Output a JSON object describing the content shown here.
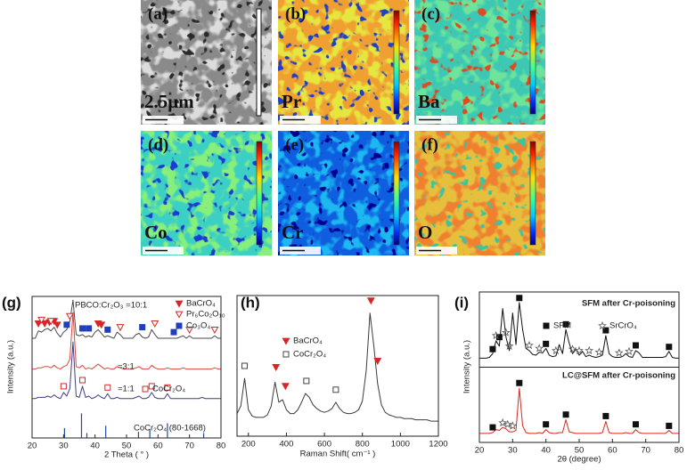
{
  "maps": [
    {
      "label": "(a)",
      "caption": "2.5μm"
    },
    {
      "label": "(b)",
      "caption": "Pr"
    },
    {
      "label": "(c)",
      "caption": "Ba"
    },
    {
      "label": "(d)",
      "caption": "Co"
    },
    {
      "label": "(e)",
      "caption": "Cr"
    },
    {
      "label": "(f)",
      "caption": "O"
    }
  ],
  "chart_data": [
    {
      "type": "line",
      "panel": "(g)",
      "xlabel": "2 Theta ( ° )",
      "ylabel": "Intensity (a.u.)",
      "xlim": [
        20,
        80
      ],
      "xticks": [
        20,
        30,
        40,
        50,
        60,
        70,
        80
      ],
      "ylim": [
        0,
        115
      ],
      "x": [
        20,
        21,
        22,
        23,
        24,
        25,
        26,
        27,
        28,
        29,
        30,
        31,
        32,
        33,
        34,
        35,
        36,
        37,
        38,
        39,
        40,
        41,
        42,
        43,
        44,
        45,
        46,
        47,
        48,
        49,
        50,
        51,
        52,
        53,
        54,
        55,
        56,
        57,
        58,
        59,
        60,
        61,
        62,
        63,
        64,
        65,
        66,
        67,
        68,
        69,
        70,
        71,
        72,
        73,
        74,
        75,
        76,
        77,
        78,
        79,
        80
      ],
      "series": [
        {
          "name": "PBCO:Cr₂O₃ =10:1",
          "color": "#4a4a4a",
          "values": [
            81,
            81,
            87,
            86,
            88,
            89,
            87,
            90,
            85,
            82,
            86,
            88,
            95,
            112,
            84,
            83,
            84,
            82,
            83,
            82,
            86,
            88,
            85,
            82,
            83,
            82,
            81,
            86,
            84,
            81,
            81,
            81,
            81,
            84,
            85,
            82,
            81,
            82,
            88,
            84,
            81,
            81,
            81,
            81,
            81,
            81,
            81,
            82,
            83,
            81,
            83,
            81,
            81,
            81,
            81,
            81,
            81,
            81,
            83,
            81,
            81
          ]
        },
        {
          "name": "=3:1",
          "color": "#d9473b",
          "values": [
            56,
            56,
            57,
            57,
            58,
            58,
            57,
            59,
            57,
            56,
            58,
            59,
            64,
            102,
            58,
            57,
            59,
            56,
            57,
            56,
            58,
            60,
            58,
            56,
            57,
            56,
            56,
            58,
            57,
            56,
            56,
            56,
            56,
            57,
            58,
            56,
            56,
            56,
            59,
            57,
            56,
            56,
            56,
            57,
            56,
            56,
            56,
            56,
            57,
            56,
            56,
            56,
            56,
            56,
            56,
            56,
            56,
            56,
            57,
            56,
            56
          ]
        },
        {
          "name": "=1:1",
          "color": "#3f3f86",
          "values": [
            32,
            32,
            33,
            33,
            33,
            34,
            33,
            35,
            33,
            32,
            37,
            34,
            40,
            78,
            34,
            33,
            42,
            33,
            34,
            32,
            33,
            35,
            33,
            32,
            36,
            32,
            32,
            33,
            32,
            32,
            32,
            32,
            32,
            33,
            34,
            32,
            32,
            33,
            37,
            33,
            32,
            32,
            32,
            36,
            32,
            32,
            32,
            32,
            32,
            32,
            32,
            32,
            32,
            32,
            33,
            32,
            32,
            32,
            32,
            32,
            32
          ]
        }
      ],
      "reference": {
        "name": "CoCr₂O₄ (80-1668)",
        "color": "#1f4e99",
        "x": [
          30.3,
          35.7,
          37.4,
          43.4,
          53.8,
          57.4,
          63.0,
          74.5
        ],
        "values": [
          8,
          20,
          4,
          10,
          5,
          7,
          12,
          4
        ]
      },
      "markers": [
        {
          "name": "BaCrO₄",
          "symbol": "triangle",
          "color": "#d62728",
          "x": [
            22,
            24,
            25.5,
            27,
            28,
            41,
            42
          ],
          "y": [
            93,
            93,
            94,
            95,
            92,
            93,
            92
          ]
        },
        {
          "name": "Pr₆Co₂O₁₀",
          "symbol": "open-triangle",
          "color": "#d62728",
          "x": [
            23,
            26,
            32,
            48,
            59,
            70,
            78
          ],
          "y": [
            96,
            95,
            99,
            90,
            93,
            88,
            88
          ]
        },
        {
          "name": "Co₃O₄",
          "symbol": "square",
          "color": "#1f3fbf",
          "x": [
            31,
            36,
            38,
            44,
            55,
            65
          ],
          "y": [
            92,
            89,
            89,
            88,
            90,
            86
          ]
        },
        {
          "name": "CoCr₂O₄",
          "symbol": "open-square",
          "color": "#d62728",
          "x": [
            30,
            36,
            44,
            58,
            63
          ],
          "y": [
            42,
            47,
            41,
            42,
            41
          ]
        }
      ]
    },
    {
      "type": "line",
      "panel": "(h)",
      "xlabel": "Raman Shift( cm⁻¹ )",
      "xlim": [
        140,
        1200
      ],
      "xticks": [
        200,
        400,
        600,
        800,
        1000,
        1200
      ],
      "ylim": [
        0,
        112
      ],
      "x": [
        140,
        160,
        180,
        200,
        220,
        240,
        260,
        280,
        300,
        320,
        340,
        360,
        380,
        400,
        420,
        440,
        460,
        480,
        500,
        520,
        540,
        560,
        580,
        600,
        620,
        640,
        660,
        680,
        700,
        720,
        740,
        760,
        780,
        800,
        820,
        840,
        860,
        880,
        900,
        920,
        940,
        960,
        980,
        1000,
        1020,
        1040,
        1060,
        1080,
        1100,
        1120,
        1140,
        1160,
        1180,
        1200
      ],
      "series": [
        {
          "color": "#3a3a3a",
          "values": [
            18,
            24,
            46,
            21,
            16,
            15,
            15,
            15,
            17,
            24,
            43,
            27,
            29,
            21,
            18,
            18,
            21,
            27,
            34,
            31,
            25,
            22,
            20,
            19,
            20,
            22,
            27,
            22,
            19,
            18,
            18,
            19,
            21,
            28,
            52,
            98,
            72,
            42,
            25,
            19,
            17,
            16,
            15,
            15,
            14,
            14,
            14,
            13,
            13,
            13,
            13,
            12,
            12,
            12
          ]
        }
      ],
      "markers": [
        {
          "name": "BaCrO₄",
          "symbol": "triangle",
          "color": "#d62728",
          "x": [
            345,
            395,
            845,
            880
          ],
          "y": [
            55,
            40,
            108,
            60
          ]
        },
        {
          "name": "CoCr₂O₄",
          "symbol": "open-square",
          "color": "#444444",
          "x": [
            180,
            505,
            660
          ],
          "y": [
            56,
            44,
            37
          ]
        }
      ]
    },
    {
      "type": "line",
      "panel": "(i)",
      "xlabel": "2θ (degree)",
      "ylabel": "Intensity (a.u.)",
      "xlim": [
        20,
        80
      ],
      "xticks": [
        20,
        30,
        40,
        50,
        60,
        70,
        80
      ],
      "ylim": [
        0,
        200
      ],
      "x": [
        20,
        21,
        22,
        23,
        24,
        25,
        26,
        27,
        28,
        29,
        30,
        31,
        32,
        33,
        34,
        35,
        36,
        37,
        38,
        39,
        40,
        41,
        42,
        43,
        44,
        45,
        46,
        47,
        48,
        49,
        50,
        51,
        52,
        53,
        54,
        55,
        56,
        57,
        58,
        59,
        60,
        61,
        62,
        63,
        64,
        65,
        66,
        67,
        68,
        69,
        70,
        71,
        72,
        73,
        74,
        75,
        76,
        77,
        78,
        79,
        80
      ],
      "series": [
        {
          "name": "SFM after Cr-poisoning",
          "color": "#111111",
          "values": [
            112,
            112,
            112,
            113,
            118,
            135,
            128,
            178,
            140,
            122,
            172,
            130,
            186,
            150,
            125,
            122,
            117,
            116,
            120,
            119,
            125,
            116,
            114,
            115,
            130,
            118,
            150,
            132,
            118,
            124,
            116,
            121,
            114,
            116,
            114,
            113,
            114,
            116,
            142,
            118,
            114,
            113,
            113,
            114,
            118,
            114,
            113,
            122,
            119,
            113,
            113,
            113,
            113,
            113,
            113,
            113,
            114,
            121,
            113,
            112,
            112
          ]
        },
        {
          "name": "LC@SFM after Cr-poisoning",
          "color": "#d62a1e",
          "values": [
            12,
            12,
            12,
            12,
            13,
            17,
            16,
            20,
            18,
            14,
            14,
            16,
            72,
            22,
            13,
            12,
            12,
            12,
            13,
            12,
            17,
            13,
            12,
            12,
            13,
            13,
            30,
            14,
            13,
            12,
            12,
            12,
            12,
            12,
            12,
            12,
            12,
            13,
            28,
            13,
            12,
            12,
            12,
            12,
            13,
            12,
            12,
            17,
            13,
            12,
            12,
            12,
            12,
            12,
            12,
            12,
            12,
            16,
            12,
            12,
            12
          ]
        }
      ],
      "markers": [
        {
          "name": "SFM",
          "symbol": "square",
          "color": "#111111",
          "x": [
            24,
            26,
            32,
            40,
            46,
            58,
            67,
            77,
            24,
            32,
            40,
            46,
            58,
            67,
            77
          ],
          "y": [
            124,
            140,
            192,
            131,
            157,
            149,
            129,
            127,
            20,
            79,
            24,
            37,
            35,
            24,
            22
          ]
        },
        {
          "name": "SrCrO₄",
          "symbol": "star",
          "color": "#555555",
          "x": [
            25,
            28,
            29,
            35,
            38,
            43,
            48,
            50,
            53,
            56,
            62,
            65,
            27,
            28.5,
            30
          ],
          "y": [
            142,
            146,
            128,
            129,
            125,
            122,
            124,
            122,
            122,
            120,
            119,
            121,
            26,
            24,
            22
          ]
        }
      ]
    }
  ]
}
